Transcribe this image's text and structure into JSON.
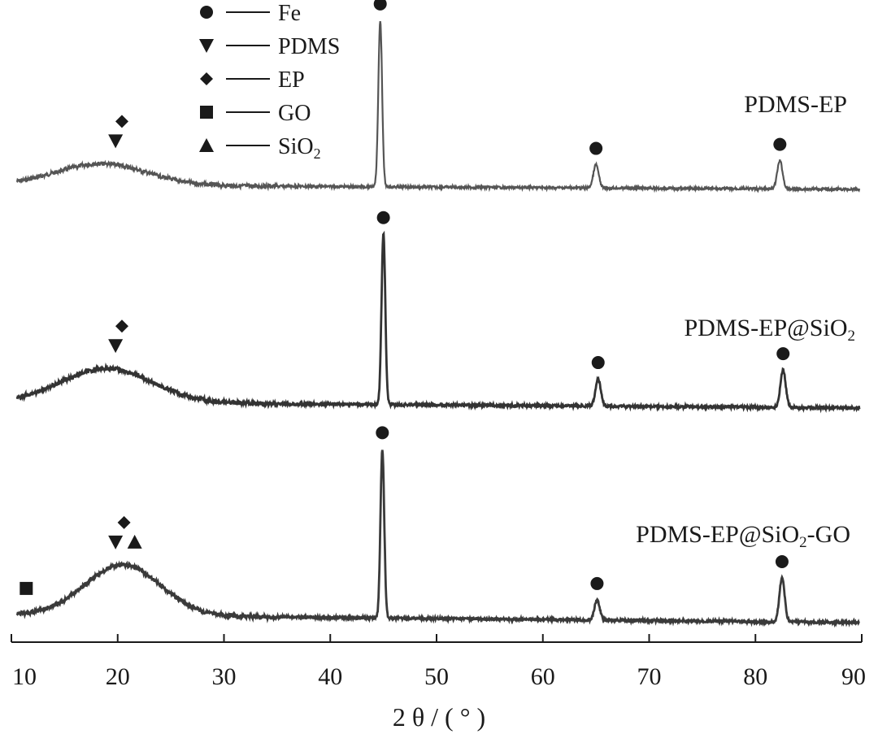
{
  "chart_data": {
    "type": "line",
    "xlabel": "2 θ / ( ° )",
    "ylabel": "",
    "xlim": [
      10,
      90
    ],
    "xticks": [
      "10",
      "20",
      "30",
      "40",
      "50",
      "60",
      "70",
      "80",
      "90"
    ],
    "grid": false,
    "legend": {
      "placement": "top-left",
      "entries": [
        {
          "symbol": "circle",
          "label": "Fe"
        },
        {
          "symbol": "triangle-down",
          "label": "PDMS"
        },
        {
          "symbol": "diamond",
          "label": "EP"
        },
        {
          "symbol": "square",
          "label": "GO"
        },
        {
          "symbol": "triangle-up",
          "label": "SiO2"
        }
      ]
    },
    "series": [
      {
        "name": "PDMS-EP",
        "color": "#555555",
        "label_parts": [
          "PDMS-EP"
        ],
        "peaks": [
          {
            "x": 44.7,
            "height": 1.0,
            "width": 0.25
          },
          {
            "x": 65.0,
            "height": 0.14,
            "width": 0.35
          },
          {
            "x": 82.3,
            "height": 0.17,
            "width": 0.35
          }
        ],
        "hump": {
          "center": 18.5,
          "height": 0.13,
          "width": 6
        },
        "markers": [
          {
            "x": 44.7,
            "symbol": "circle"
          },
          {
            "x": 65.0,
            "symbol": "circle"
          },
          {
            "x": 82.3,
            "symbol": "circle"
          },
          {
            "x": 19.8,
            "symbol": "triangle-down"
          },
          {
            "x": 20.4,
            "symbol": "diamond"
          }
        ]
      },
      {
        "name": "PDMS-EP@SiO2",
        "color": "#333333",
        "label_parts": [
          "PDMS-EP@SiO",
          "2"
        ],
        "peaks": [
          {
            "x": 45.0,
            "height": 1.0,
            "width": 0.25
          },
          {
            "x": 65.2,
            "height": 0.16,
            "width": 0.35
          },
          {
            "x": 82.6,
            "height": 0.22,
            "width": 0.35
          }
        ],
        "hump": {
          "center": 19.0,
          "height": 0.2,
          "width": 6
        },
        "markers": [
          {
            "x": 45.0,
            "symbol": "circle"
          },
          {
            "x": 65.2,
            "symbol": "circle"
          },
          {
            "x": 82.6,
            "symbol": "circle"
          },
          {
            "x": 19.8,
            "symbol": "triangle-down"
          },
          {
            "x": 20.4,
            "symbol": "diamond"
          }
        ]
      },
      {
        "name": "PDMS-EP@SiO2-GO",
        "color": "#3a3a3a",
        "label_parts": [
          "PDMS-EP@SiO",
          "2",
          "-GO"
        ],
        "peaks": [
          {
            "x": 44.9,
            "height": 1.0,
            "width": 0.25
          },
          {
            "x": 65.1,
            "height": 0.12,
            "width": 0.35
          },
          {
            "x": 82.5,
            "height": 0.26,
            "width": 0.35
          }
        ],
        "hump": {
          "center": 20.5,
          "height": 0.3,
          "width": 5
        },
        "markers": [
          {
            "x": 44.9,
            "symbol": "circle"
          },
          {
            "x": 65.1,
            "symbol": "circle"
          },
          {
            "x": 82.5,
            "symbol": "circle"
          },
          {
            "x": 11.4,
            "symbol": "square"
          },
          {
            "x": 19.8,
            "symbol": "triangle-down"
          },
          {
            "x": 20.6,
            "symbol": "diamond"
          },
          {
            "x": 21.6,
            "symbol": "triangle-up"
          }
        ]
      }
    ]
  }
}
